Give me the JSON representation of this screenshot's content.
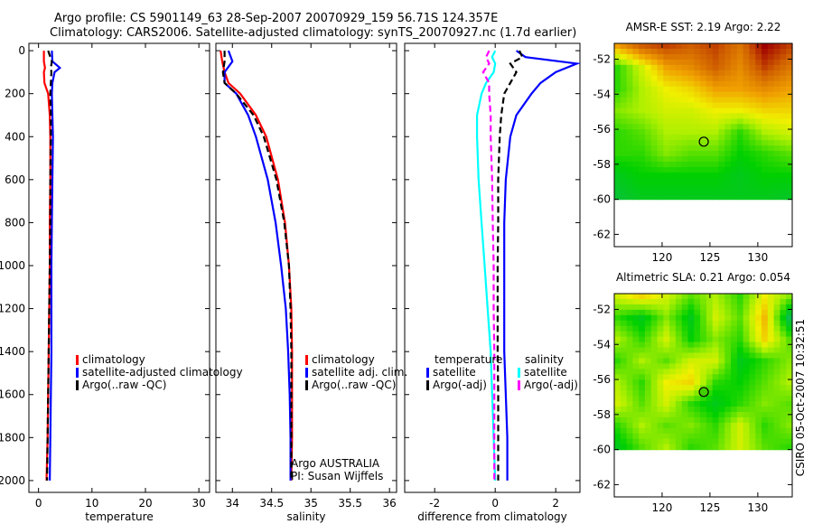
{
  "header": {
    "line1": "Argo profile: CS 5901149_63 28-Sep-2007 20070929_159 56.71S 124.357E",
    "line2": "Climatology: CARS2006. Satellite-adjusted climatology: synTS_20070927.nc (1.7d earlier)"
  },
  "side_label": "CSIRO 05-Oct-2007 10:32:51",
  "colors": {
    "red": "#ff0000",
    "blue": "#0000ff",
    "black": "#000000",
    "cyan": "#00ffff",
    "magenta": "#ff00ff"
  },
  "chart_data": [
    {
      "type": "line",
      "xlabel": "temperature",
      "ylabel": "",
      "xlim": [
        -1.8,
        32
      ],
      "ylim": [
        2055,
        -34
      ],
      "xticks": [
        0,
        10,
        20,
        30
      ],
      "yticks": [
        0,
        200,
        400,
        600,
        800,
        1000,
        1200,
        1400,
        1600,
        1800,
        2000
      ],
      "depth": [
        0,
        50,
        80,
        100,
        150,
        200,
        300,
        400,
        600,
        800,
        1000,
        1200,
        1400,
        1600,
        1800,
        2000
      ],
      "series": [
        {
          "name": "climatology",
          "color": "red",
          "dash": false,
          "values": [
            1.0,
            1.0,
            1.2,
            1.0,
            1.1,
            1.8,
            2.1,
            2.2,
            2.2,
            2.1,
            2.1,
            2.0,
            1.9,
            1.8,
            1.7,
            1.5
          ]
        },
        {
          "name": "satellite-adjusted climatology",
          "color": "blue",
          "dash": false,
          "values": [
            2.5,
            2.6,
            4.0,
            3.0,
            2.6,
            2.5,
            2.6,
            2.7,
            2.6,
            2.5,
            2.4,
            2.4,
            2.4,
            2.3,
            2.2,
            2.1
          ]
        },
        {
          "name": "Argo(..raw -QC)",
          "color": "black",
          "dash": true,
          "values": [
            1.8,
            2.5,
            2.3,
            2.4,
            2.3,
            2.2,
            2.3,
            2.3,
            2.2,
            2.2,
            2.1,
            2.0,
            1.9,
            1.8,
            1.7,
            1.6
          ]
        }
      ],
      "legend": [
        "climatology",
        "satellite-adjusted climatology",
        "Argo(..raw -QC)"
      ]
    },
    {
      "type": "line",
      "xlabel": "salinity",
      "xlim": [
        33.79,
        36.09
      ],
      "ylim": [
        2055,
        -34
      ],
      "xticks": [
        34,
        34.5,
        35,
        35.5,
        36
      ],
      "depth": [
        0,
        50,
        100,
        150,
        200,
        300,
        400,
        600,
        800,
        1000,
        1200,
        1400,
        1600,
        1800,
        2000
      ],
      "series": [
        {
          "name": "climatology",
          "color": "red",
          "dash": false,
          "values": [
            33.85,
            33.87,
            33.9,
            33.95,
            34.1,
            34.3,
            34.43,
            34.58,
            34.67,
            34.72,
            34.75,
            34.76,
            34.76,
            34.76,
            34.75
          ]
        },
        {
          "name": "satellite adj. clim.",
          "color": "blue",
          "dash": false,
          "values": [
            33.95,
            34.0,
            33.9,
            33.9,
            34.05,
            34.2,
            34.3,
            34.45,
            34.55,
            34.62,
            34.68,
            34.71,
            34.73,
            34.74,
            34.74
          ]
        },
        {
          "name": "Argo(..raw -QC)",
          "color": "black",
          "dash": true,
          "values": [
            33.9,
            33.9,
            33.88,
            33.9,
            34.05,
            34.27,
            34.4,
            34.56,
            34.66,
            34.72,
            34.74,
            34.75,
            34.75,
            34.75,
            34.75
          ]
        }
      ],
      "legend": [
        "climatology",
        "satellite adj. clim.",
        "Argo(..raw -QC)"
      ],
      "annotation": [
        "Argo AUSTRALIA",
        "PI: Susan Wijffels"
      ]
    },
    {
      "type": "line",
      "xlabel": "difference from climatology",
      "xlim": [
        -2.99,
        2.8
      ],
      "ylim": [
        2055,
        -34
      ],
      "xticks": [
        -2,
        0,
        2
      ],
      "depth": [
        0,
        30,
        60,
        100,
        150,
        200,
        300,
        400,
        600,
        800,
        1000,
        1200,
        1400,
        1600,
        1800,
        2000
      ],
      "series": [
        {
          "name": "temperature satellite",
          "color": "blue",
          "dash": false,
          "values": [
            0.7,
            1.0,
            2.7,
            2.0,
            1.5,
            1.2,
            0.7,
            0.5,
            0.35,
            0.3,
            0.3,
            0.3,
            0.3,
            0.35,
            0.4,
            0.4
          ]
        },
        {
          "name": "temperature Argo(-adj)",
          "color": "black",
          "dash": true,
          "values": [
            0.8,
            0.9,
            0.5,
            0.7,
            0.5,
            0.3,
            0.2,
            0.15,
            0.1,
            0.1,
            0.08,
            0.08,
            0.08,
            0.1,
            0.1,
            0.1
          ]
        },
        {
          "name": "salinity satellite",
          "color": "cyan",
          "dash": false,
          "values": [
            0.0,
            -0.1,
            0.0,
            -0.05,
            -0.3,
            -0.45,
            -0.6,
            -0.6,
            -0.55,
            -0.45,
            -0.35,
            -0.25,
            -0.15,
            -0.1,
            -0.05,
            0.0
          ]
        },
        {
          "name": "salinity Argo(-adj)",
          "color": "magenta",
          "dash": true,
          "values": [
            -0.2,
            -0.3,
            -0.2,
            -0.4,
            -0.2,
            -0.2,
            -0.15,
            -0.15,
            -0.1,
            -0.08,
            -0.05,
            -0.05,
            -0.03,
            -0.03,
            -0.03,
            -0.03
          ]
        }
      ],
      "legend_headers": [
        "temperature",
        "salinity"
      ],
      "legend": [
        "satellite",
        "Argo(-adj)",
        "satellite",
        "Argo(-adj)"
      ]
    },
    {
      "type": "heatmap",
      "title": "AMSR-E SST: 2.19 Argo: 2.22",
      "xlim": [
        115,
        133.6
      ],
      "ylim": [
        -62.7,
        -51.1
      ],
      "xticks": [
        120,
        125,
        130
      ],
      "yticks": [
        -52,
        -54,
        -56,
        -58,
        -60,
        -62
      ],
      "data_lat_range": [
        -51.1,
        -60
      ],
      "data_lon_range": [
        115,
        133.6
      ],
      "argo_position": [
        124.357,
        -56.71
      ],
      "grid": [
        [
          0.7,
          0.85,
          0.9,
          0.85,
          0.9,
          0.8,
          1.0,
          0.9
        ],
        [
          0.3,
          0.5,
          0.7,
          0.75,
          0.85,
          0.75,
          0.9,
          0.8
        ],
        [
          0.3,
          0.45,
          0.55,
          0.6,
          0.7,
          0.7,
          0.75,
          0.7
        ],
        [
          0.4,
          0.45,
          0.5,
          0.5,
          0.55,
          0.55,
          0.6,
          0.6
        ],
        [
          0.3,
          0.35,
          0.45,
          0.45,
          0.45,
          0.3,
          0.45,
          0.5
        ],
        [
          0.3,
          0.3,
          0.4,
          0.35,
          0.35,
          0.25,
          0.3,
          0.35
        ],
        [
          0.2,
          0.25,
          0.25,
          0.25,
          0.25,
          0.2,
          0.25,
          0.25
        ],
        [
          0.15,
          0.2,
          0.2,
          0.2,
          0.2,
          0.2,
          0.2,
          0.18
        ]
      ]
    },
    {
      "type": "heatmap",
      "title": "Altimetric SLA: 0.21 Argo: 0.054",
      "xlim": [
        115,
        133.6
      ],
      "ylim": [
        -62.7,
        -51.1
      ],
      "xticks": [
        120,
        125,
        130
      ],
      "yticks": [
        -52,
        -54,
        -56,
        -58,
        -60,
        -62
      ],
      "data_lat_range": [
        -51.1,
        -60
      ],
      "data_lon_range": [
        115,
        133.6
      ],
      "argo_position": [
        124.357,
        -56.71
      ],
      "grid": [
        [
          0.5,
          0.6,
          0.5,
          0.35,
          0.45,
          0.3,
          0.55,
          0.4
        ],
        [
          0.3,
          0.2,
          0.4,
          0.2,
          0.5,
          0.35,
          0.65,
          0.1
        ],
        [
          0.45,
          0.3,
          0.5,
          0.25,
          0.4,
          0.3,
          0.6,
          0.35
        ],
        [
          0.3,
          0.45,
          0.35,
          0.5,
          0.5,
          0.2,
          0.3,
          0.4
        ],
        [
          0.45,
          0.3,
          0.55,
          0.6,
          0.3,
          0.25,
          0.35,
          0.45
        ],
        [
          0.5,
          0.35,
          0.5,
          0.3,
          0.2,
          0.3,
          0.4,
          0.35
        ],
        [
          0.3,
          0.45,
          0.35,
          0.4,
          0.3,
          0.5,
          0.3,
          0.4
        ],
        [
          0.2,
          0.35,
          0.45,
          0.3,
          0.35,
          0.5,
          0.35,
          0.3
        ]
      ]
    }
  ]
}
